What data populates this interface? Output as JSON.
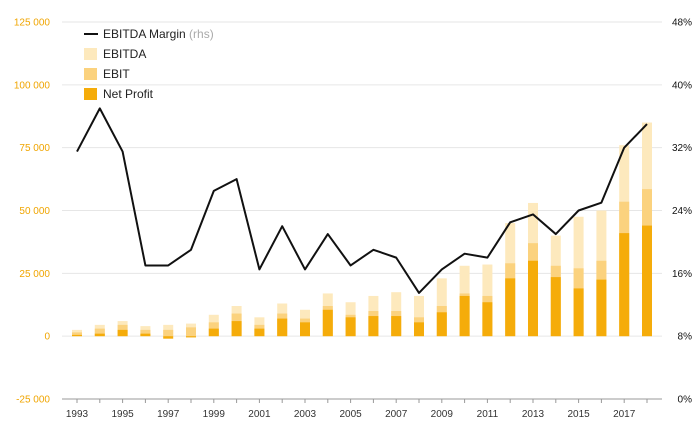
{
  "colors": {
    "ebitda": "#fde9bd",
    "ebit": "#fbd27e",
    "net_profit": "#f5ac0a",
    "line": "#111111",
    "left_axis_text": "#f0a500",
    "right_axis_text": "#111111",
    "grid": "#e6e6e6",
    "rhs_note": "#aaaaaa"
  },
  "chart_data": {
    "type": "bar",
    "bar_mode": "overlapping",
    "x": [
      1993,
      1994,
      1995,
      1996,
      1997,
      1998,
      1999,
      2000,
      2001,
      2002,
      2003,
      2004,
      2005,
      2006,
      2007,
      2008,
      2009,
      2010,
      2011,
      2012,
      2013,
      2014,
      2015,
      2016,
      2017,
      2018
    ],
    "x_tick_labels": [
      "1993",
      "1995",
      "1997",
      "1999",
      "2001",
      "2003",
      "2005",
      "2007",
      "2009",
      "2011",
      "2013",
      "2015",
      "2017"
    ],
    "series": [
      {
        "name": "EBITDA",
        "axis": "left",
        "kind": "bar",
        "color_key": "ebitda",
        "values": [
          2500,
          4500,
          6000,
          4000,
          4500,
          5000,
          8500,
          12000,
          7500,
          13000,
          10500,
          17000,
          13500,
          16000,
          17500,
          16000,
          23000,
          28000,
          28500,
          45000,
          53000,
          40000,
          47500,
          50000,
          76000,
          85000
        ]
      },
      {
        "name": "EBIT",
        "axis": "left",
        "kind": "bar",
        "color_key": "ebit",
        "values": [
          1500,
          3000,
          4500,
          2500,
          2500,
          3500,
          5500,
          9000,
          4500,
          9000,
          7000,
          12000,
          8500,
          10000,
          10000,
          7500,
          12000,
          17000,
          16000,
          29000,
          37000,
          28000,
          27000,
          30000,
          53500,
          58500
        ]
      },
      {
        "name": "Net Profit",
        "axis": "left",
        "kind": "bar",
        "color_key": "net_profit",
        "values": [
          500,
          1000,
          2500,
          1000,
          -1000,
          -500,
          3000,
          6000,
          3000,
          7000,
          5500,
          10500,
          7500,
          8000,
          8000,
          5500,
          9500,
          16000,
          13500,
          23000,
          30000,
          23500,
          19000,
          22500,
          41000,
          44000
        ]
      },
      {
        "name": "EBITDA Margin",
        "axis": "right",
        "kind": "line",
        "color_key": "line",
        "values": [
          31.5,
          37,
          31.5,
          17,
          17,
          19,
          26.5,
          28,
          16.5,
          22,
          16.5,
          21,
          17,
          19,
          18,
          13.5,
          16.5,
          18.5,
          18,
          22.5,
          23.5,
          21,
          24,
          25,
          32,
          35
        ]
      }
    ],
    "legend": [
      {
        "label": "EBITDA Margin",
        "note": "(rhs)",
        "kind": "line",
        "color_key": "line"
      },
      {
        "label": "EBITDA",
        "kind": "bar",
        "color_key": "ebitda"
      },
      {
        "label": "EBIT",
        "kind": "bar",
        "color_key": "ebit"
      },
      {
        "label": "Net Profit",
        "kind": "bar",
        "color_key": "net_profit"
      }
    ],
    "legend_position": "top-left",
    "y_left": {
      "ylim": [
        -25000,
        125000
      ],
      "ticks": [
        -25000,
        0,
        25000,
        50000,
        75000,
        100000,
        125000
      ],
      "tick_labels": [
        "-25 000",
        "0",
        "25 000",
        "50 000",
        "75 000",
        "100 000",
        "125 000"
      ]
    },
    "y_right": {
      "ylim": [
        0,
        48
      ],
      "ticks": [
        0,
        8,
        16,
        24,
        32,
        40,
        48
      ],
      "tick_labels": [
        "0%",
        "8%",
        "16%",
        "24%",
        "32%",
        "40%",
        "48%"
      ]
    },
    "grid": true
  }
}
